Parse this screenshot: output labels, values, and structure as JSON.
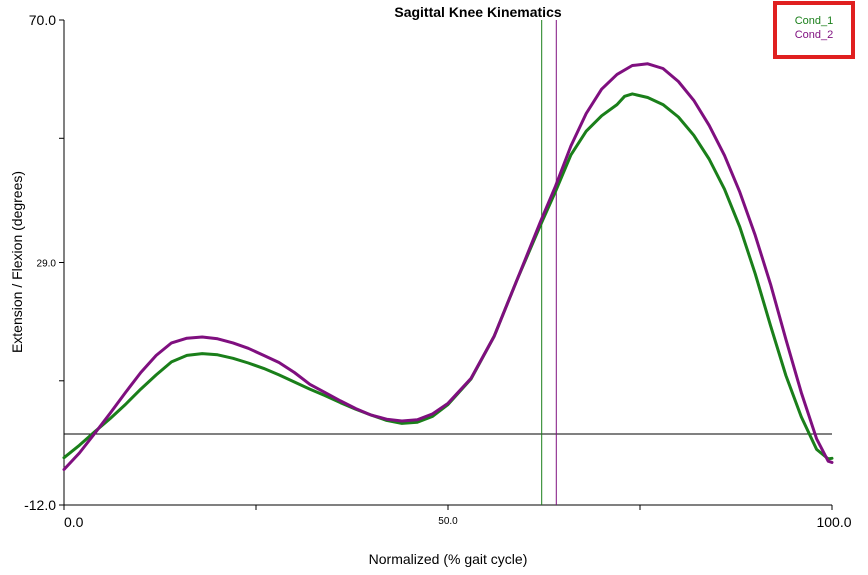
{
  "chart_data": {
    "type": "line",
    "title": "Sagittal Knee Kinematics",
    "xlabel": "Normalized (% gait cycle)",
    "ylabel": "Extension / Flexion (degrees)",
    "xlim": [
      0,
      100
    ],
    "ylim": [
      -12,
      70
    ],
    "x_ticks": [
      0,
      25,
      50,
      75,
      100
    ],
    "x_tick_labels": [
      "0.0",
      "",
      "50.0",
      "",
      "100.0"
    ],
    "y_ticks": [
      -12,
      9,
      29,
      50,
      70
    ],
    "y_tick_labels": [
      "-12.0",
      "",
      "29.0",
      "",
      "70.0"
    ],
    "reference_line_y": 0,
    "legend_position": "top-right",
    "series": [
      {
        "name": "Cond_1",
        "color": "#1a7f1a",
        "toe_off": 62.2,
        "points": [
          [
            0,
            -4
          ],
          [
            2,
            -1.9
          ],
          [
            4,
            0.4
          ],
          [
            6,
            2.6
          ],
          [
            8,
            5
          ],
          [
            10,
            7.6
          ],
          [
            12,
            10
          ],
          [
            14,
            12.2
          ],
          [
            16,
            13.3
          ],
          [
            18,
            13.6
          ],
          [
            20,
            13.4
          ],
          [
            22,
            12.8
          ],
          [
            24,
            12
          ],
          [
            26,
            11.1
          ],
          [
            28,
            10
          ],
          [
            30,
            8.8
          ],
          [
            32,
            7.6
          ],
          [
            34,
            6.5
          ],
          [
            36,
            5.3
          ],
          [
            38,
            4.2
          ],
          [
            40,
            3.2
          ],
          [
            42,
            2.3
          ],
          [
            44,
            1.8
          ],
          [
            46,
            2
          ],
          [
            48,
            3
          ],
          [
            50,
            5
          ],
          [
            53,
            9.3
          ],
          [
            56,
            16.5
          ],
          [
            59,
            26.1
          ],
          [
            62,
            35.2
          ],
          [
            64,
            41
          ],
          [
            66,
            47.2
          ],
          [
            68,
            51.2
          ],
          [
            70,
            53.8
          ],
          [
            72,
            55.7
          ],
          [
            73,
            57.1
          ],
          [
            74,
            57.5
          ],
          [
            76,
            56.9
          ],
          [
            78,
            55.7
          ],
          [
            80,
            53.6
          ],
          [
            82,
            50.5
          ],
          [
            84,
            46.5
          ],
          [
            86,
            41.4
          ],
          [
            88,
            35
          ],
          [
            90,
            27.1
          ],
          [
            92,
            18.3
          ],
          [
            94,
            9.9
          ],
          [
            96,
            2.9
          ],
          [
            98,
            -2.6
          ],
          [
            99.5,
            -4.2
          ],
          [
            100,
            -4.1
          ]
        ]
      },
      {
        "name": "Cond_2",
        "color": "#7f0f7f",
        "toe_off": 64.1,
        "points": [
          [
            0,
            -6
          ],
          [
            2,
            -3.2
          ],
          [
            4,
            0.1
          ],
          [
            6,
            3.5
          ],
          [
            8,
            7
          ],
          [
            10,
            10.4
          ],
          [
            12,
            13.3
          ],
          [
            14,
            15.4
          ],
          [
            16,
            16.2
          ],
          [
            18,
            16.4
          ],
          [
            20,
            16.1
          ],
          [
            22,
            15.4
          ],
          [
            24,
            14.5
          ],
          [
            26,
            13.3
          ],
          [
            28,
            12.1
          ],
          [
            30,
            10.4
          ],
          [
            32,
            8.4
          ],
          [
            34,
            7
          ],
          [
            36,
            5.6
          ],
          [
            38,
            4.3
          ],
          [
            40,
            3.2
          ],
          [
            42,
            2.5
          ],
          [
            44,
            2.2
          ],
          [
            46,
            2.4
          ],
          [
            48,
            3.4
          ],
          [
            50,
            5.2
          ],
          [
            53,
            9.4
          ],
          [
            56,
            16.5
          ],
          [
            59,
            26.1
          ],
          [
            62,
            35.8
          ],
          [
            64,
            41.9
          ],
          [
            66,
            48.7
          ],
          [
            68,
            54.2
          ],
          [
            70,
            58.3
          ],
          [
            72,
            60.8
          ],
          [
            74,
            62.3
          ],
          [
            76,
            62.6
          ],
          [
            78,
            61.8
          ],
          [
            80,
            59.6
          ],
          [
            82,
            56.4
          ],
          [
            84,
            52.2
          ],
          [
            86,
            47.1
          ],
          [
            88,
            40.9
          ],
          [
            90,
            33.6
          ],
          [
            92,
            25.3
          ],
          [
            94,
            16
          ],
          [
            96,
            7
          ],
          [
            98,
            -0.8
          ],
          [
            99.5,
            -4.6
          ],
          [
            100,
            -4.8
          ]
        ]
      }
    ]
  }
}
